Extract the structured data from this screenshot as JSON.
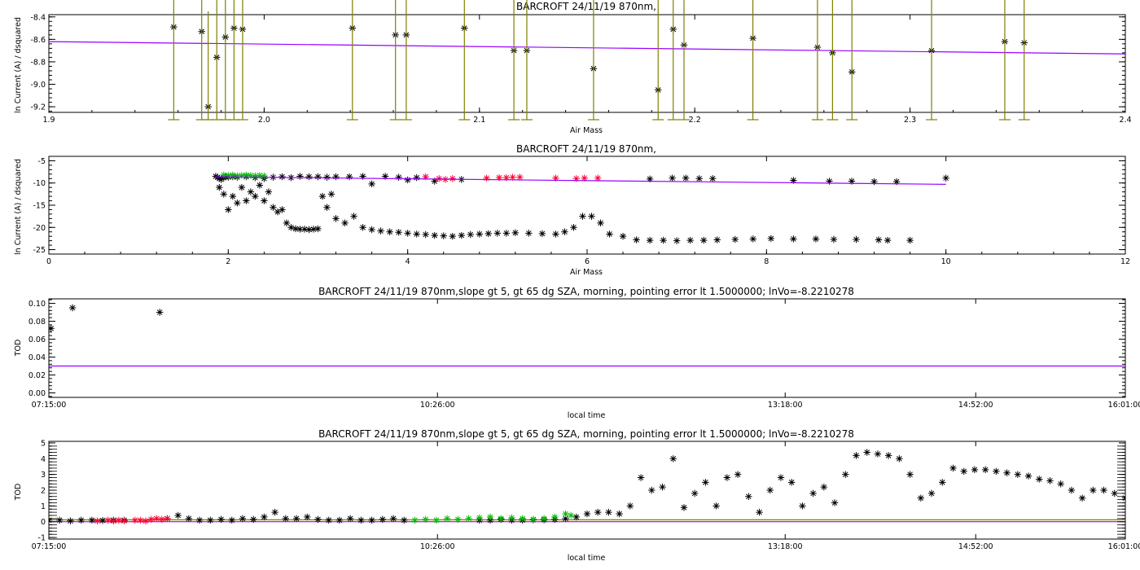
{
  "colors": {
    "fit": "#9900ff",
    "errorbar": "#7f7f00",
    "point": "#000000",
    "red": "#ff0033",
    "green": "#00bb00"
  },
  "chart_data": [
    {
      "type": "scatter",
      "title": "BARCROFT 24/11/19 870nm,",
      "xlabel": "Air Mass",
      "ylabel": "ln Current (A) / dsquared",
      "xlim": [
        1.9,
        2.4
      ],
      "ylim": [
        -9.25,
        -8.38
      ],
      "xticks": [
        1.9,
        2.0,
        2.1,
        2.2,
        2.3,
        2.4
      ],
      "xtick_labels": [
        "1.9",
        "2.0",
        "2.1",
        "2.2",
        "2.3",
        "2.4"
      ],
      "yticks": [
        -8.4,
        -8.6,
        -8.8,
        -9.0,
        -9.2
      ],
      "ytick_labels": [
        "-8.4",
        "-8.6",
        "-8.8",
        "-9.0",
        "-9.2"
      ],
      "fit_line": {
        "x": [
          1.9,
          2.4
        ],
        "y": [
          -8.62,
          -8.73
        ]
      },
      "errorbar_halfwidth": 0.85,
      "points": {
        "x": [
          1.958,
          1.971,
          1.974,
          1.978,
          1.982,
          1.986,
          1.99,
          2.041,
          2.061,
          2.066,
          2.093,
          2.116,
          2.122,
          2.153,
          2.183,
          2.19,
          2.195,
          2.227,
          2.257,
          2.264,
          2.273,
          2.31,
          2.344,
          2.353
        ],
        "y": [
          -8.49,
          -8.53,
          -9.2,
          -8.76,
          -8.58,
          -8.5,
          -8.51,
          -8.5,
          -8.56,
          -8.56,
          -8.5,
          -8.7,
          -8.7,
          -8.86,
          -9.05,
          -8.51,
          -8.65,
          -8.59,
          -8.67,
          -8.72,
          -8.89,
          -8.7,
          -8.62,
          -8.63
        ]
      }
    },
    {
      "type": "scatter",
      "title": "BARCROFT 24/11/19 870nm,",
      "xlabel": "Air Mass",
      "ylabel": "ln Current (A) / dsquared",
      "xlim": [
        0,
        12
      ],
      "ylim": [
        -26,
        -4
      ],
      "xticks": [
        0,
        2,
        4,
        6,
        8,
        10,
        12
      ],
      "xtick_labels": [
        "0",
        "2",
        "4",
        "6",
        "8",
        "10",
        "12"
      ],
      "yticks": [
        -5,
        -10,
        -15,
        -20,
        -25
      ],
      "ytick_labels": [
        "-5",
        "-10",
        "-15",
        "-20",
        "-25"
      ],
      "fit_line": {
        "x": [
          1.85,
          10
        ],
        "y": [
          -8.6,
          -10.3
        ]
      },
      "upper_points": {
        "x": [
          1.86,
          1.88,
          1.9,
          1.92,
          1.95,
          1.97,
          2.0,
          2.05,
          2.1,
          2.2,
          2.3,
          2.4,
          2.5,
          2.6,
          2.7,
          2.8,
          2.9,
          3.0,
          3.1,
          3.2,
          3.35,
          3.5,
          3.6,
          3.75,
          3.9,
          4.0,
          4.1,
          4.3,
          4.6,
          6.7,
          6.95,
          7.1,
          7.25,
          7.4,
          8.3,
          8.7,
          8.95,
          9.2,
          9.45,
          10.0
        ],
        "y": [
          -8.5,
          -8.7,
          -9.0,
          -9.2,
          -8.8,
          -8.6,
          -8.7,
          -8.6,
          -8.7,
          -8.6,
          -8.8,
          -9.0,
          -8.7,
          -8.6,
          -8.8,
          -8.5,
          -8.6,
          -8.6,
          -8.7,
          -8.6,
          -8.6,
          -8.5,
          -10.2,
          -8.5,
          -8.7,
          -9.3,
          -8.8,
          -9.6,
          -9.2,
          -9.1,
          -8.9,
          -8.9,
          -9.0,
          -9.0,
          -9.4,
          -9.6,
          -9.6,
          -9.7,
          -9.7,
          -8.9
        ]
      },
      "red_points": {
        "x": [
          4.2,
          4.35,
          4.42,
          4.5,
          4.88,
          5.02,
          5.1,
          5.17,
          5.25,
          5.65,
          5.88,
          5.97,
          6.12
        ],
        "y": [
          -8.6,
          -9.0,
          -9.2,
          -9.0,
          -8.9,
          -8.8,
          -8.8,
          -8.7,
          -8.7,
          -8.9,
          -9.0,
          -8.9,
          -8.9
        ]
      },
      "green_points": {
        "x": [
          1.95,
          2.0,
          2.05,
          2.1,
          2.15,
          2.2,
          2.25,
          2.3,
          2.35,
          2.4
        ],
        "y": [
          -8.2,
          -8.3,
          -8.2,
          -8.4,
          -8.3,
          -8.2,
          -8.3,
          -8.4,
          -8.3,
          -8.4
        ]
      },
      "lower_points": {
        "x": [
          1.9,
          1.95,
          2.0,
          2.05,
          2.1,
          2.15,
          2.2,
          2.25,
          2.3,
          2.35,
          2.4,
          2.45,
          2.5,
          2.55,
          2.6,
          2.65,
          2.7,
          2.75,
          2.8,
          2.85,
          2.9,
          2.95,
          3.0,
          3.05,
          3.1,
          3.15,
          3.2,
          3.3,
          3.4,
          3.5,
          3.6,
          3.7,
          3.8,
          3.9,
          4.0,
          4.1,
          4.2,
          4.3,
          4.4,
          4.5,
          4.6,
          4.7,
          4.8,
          4.9,
          5.0,
          5.1,
          5.2,
          5.35,
          5.5,
          5.65,
          5.75,
          5.85,
          5.95,
          6.05,
          6.15,
          6.25,
          6.4,
          6.55,
          6.7,
          6.85,
          7.0,
          7.15,
          7.3,
          7.45,
          7.65,
          7.85,
          8.05,
          8.3,
          8.55,
          8.75,
          9.0,
          9.25,
          9.35,
          9.6
        ],
        "y": [
          -11.0,
          -12.5,
          -16.0,
          -13.0,
          -14.5,
          -11.0,
          -14.0,
          -12.0,
          -13.0,
          -10.5,
          -14.0,
          -12.0,
          -15.5,
          -16.5,
          -16.0,
          -19.0,
          -20.0,
          -20.3,
          -20.4,
          -20.4,
          -20.5,
          -20.4,
          -20.3,
          -13.0,
          -15.5,
          -12.5,
          -18.0,
          -19.0,
          -17.5,
          -20.0,
          -20.5,
          -20.8,
          -21.0,
          -21.1,
          -21.3,
          -21.5,
          -21.6,
          -21.8,
          -21.9,
          -22.0,
          -21.8,
          -21.6,
          -21.5,
          -21.4,
          -21.3,
          -21.3,
          -21.2,
          -21.3,
          -21.4,
          -21.5,
          -21.0,
          -20.0,
          -17.5,
          -17.5,
          -19.0,
          -21.5,
          -22.0,
          -22.8,
          -22.9,
          -22.9,
          -23.0,
          -22.9,
          -22.9,
          -22.8,
          -22.7,
          -22.6,
          -22.5,
          -22.6,
          -22.6,
          -22.7,
          -22.7,
          -22.8,
          -22.9,
          -22.9
        ]
      }
    },
    {
      "type": "scatter",
      "title": "BARCROFT 24/11/19 870nm,slope gt 5, gt 65 dg SZA, morning, pointing error lt 1.5000000; lnVo=-8.2210278",
      "xlabel": "local time",
      "ylabel": "TOD",
      "xlim": [
        0,
        1
      ],
      "ylim": [
        -0.005,
        0.105
      ],
      "xtick_labels": [
        "07:15:00",
        "10:26:00",
        "13:18:00",
        "14:52:00",
        "16:01:00"
      ],
      "yticks": [
        0.0,
        0.02,
        0.04,
        0.06,
        0.08,
        0.1
      ],
      "ytick_labels": [
        "0.00",
        "0.02",
        "0.04",
        "0.06",
        "0.08",
        "0.10"
      ],
      "fit_line": {
        "x": [
          0,
          1
        ],
        "y": [
          0.03,
          0.03
        ]
      },
      "points": {
        "x": [
          0.002,
          0.022,
          0.103
        ],
        "y": [
          0.072,
          0.095,
          0.09
        ]
      }
    },
    {
      "type": "scatter",
      "title": "BARCROFT 24/11/19 870nm,slope gt 5, gt 65 dg SZA, morning, pointing error lt 1.5000000; lnVo=-8.2210278",
      "xlabel": "local time",
      "ylabel": "TOD",
      "xlim": [
        0,
        1
      ],
      "ylim": [
        -1.1,
        5.1
      ],
      "xtick_labels": [
        "07:15:00",
        "10:26:00",
        "13:18:00",
        "14:52:00",
        "16:01:00"
      ],
      "yticks": [
        -1,
        0,
        1,
        2,
        3,
        4,
        5
      ],
      "ytick_labels": [
        "-1",
        "0",
        "1",
        "2",
        "3",
        "4",
        "5"
      ],
      "fit_lines": [
        {
          "x": [
            0,
            1
          ],
          "y": [
            0.0,
            0.0
          ]
        },
        {
          "x": [
            0,
            1
          ],
          "y": [
            0.12,
            0.12
          ]
        }
      ],
      "points": {
        "x": [
          0.0,
          0.01,
          0.02,
          0.03,
          0.04,
          0.05,
          0.06,
          0.07,
          0.11,
          0.12,
          0.13,
          0.14,
          0.15,
          0.16,
          0.17,
          0.18,
          0.19,
          0.2,
          0.21,
          0.22,
          0.23,
          0.24,
          0.25,
          0.26,
          0.27,
          0.28,
          0.29,
          0.3,
          0.31,
          0.32,
          0.33,
          0.4,
          0.41,
          0.42,
          0.43,
          0.44,
          0.45,
          0.46,
          0.47,
          0.48,
          0.49,
          0.5,
          0.51,
          0.52,
          0.53,
          0.54,
          0.55,
          0.56,
          0.57,
          0.58,
          0.59,
          0.6,
          0.61,
          0.62,
          0.63,
          0.64,
          0.65,
          0.66,
          0.67,
          0.68,
          0.69,
          0.7,
          0.71,
          0.72,
          0.73,
          0.74,
          0.75,
          0.76,
          0.77,
          0.78,
          0.79,
          0.8,
          0.81,
          0.82,
          0.83,
          0.84,
          0.85,
          0.86,
          0.87,
          0.88,
          0.89,
          0.9,
          0.91,
          0.92,
          0.93,
          0.94,
          0.95,
          0.96,
          0.97,
          0.98,
          0.99,
          1.0
        ],
        "y": [
          0.1,
          0.1,
          0.05,
          0.1,
          0.1,
          0.08,
          0.1,
          0.1,
          0.2,
          0.4,
          0.2,
          0.1,
          0.1,
          0.15,
          0.1,
          0.2,
          0.15,
          0.3,
          0.6,
          0.2,
          0.2,
          0.3,
          0.15,
          0.1,
          0.1,
          0.2,
          0.1,
          0.1,
          0.15,
          0.2,
          0.1,
          0.1,
          0.1,
          0.15,
          0.1,
          0.1,
          0.12,
          0.12,
          0.15,
          0.2,
          0.3,
          0.5,
          0.6,
          0.6,
          0.5,
          1.0,
          2.8,
          2.0,
          2.2,
          4.0,
          0.9,
          1.8,
          2.5,
          1.0,
          2.8,
          3.0,
          1.6,
          0.6,
          2.0,
          2.8,
          2.5,
          1.0,
          1.8,
          2.2,
          1.2,
          3.0,
          4.2,
          4.4,
          4.3,
          4.2,
          4.0,
          3.0,
          1.5,
          1.8,
          2.5,
          3.4,
          3.2,
          3.3,
          3.3,
          3.2,
          3.1,
          3.0,
          2.9,
          2.7,
          2.6,
          2.4,
          2.0,
          1.5,
          2.0,
          2.0,
          1.8,
          1.5
        ]
      },
      "red_points": {
        "x": [
          0.045,
          0.055,
          0.06,
          0.065,
          0.07,
          0.08,
          0.085,
          0.09,
          0.095,
          0.1,
          0.105,
          0.11
        ],
        "y": [
          0.05,
          0.1,
          0.05,
          0.1,
          0.05,
          0.1,
          0.1,
          0.05,
          0.15,
          0.2,
          0.15,
          0.2
        ]
      },
      "green_points": {
        "x": [
          0.34,
          0.35,
          0.36,
          0.37,
          0.38,
          0.39,
          0.4,
          0.41,
          0.42,
          0.43,
          0.44,
          0.45,
          0.46,
          0.47,
          0.48,
          0.485
        ],
        "y": [
          0.1,
          0.15,
          0.1,
          0.2,
          0.15,
          0.2,
          0.25,
          0.3,
          0.2,
          0.25,
          0.2,
          0.15,
          0.2,
          0.3,
          0.5,
          0.4
        ]
      }
    }
  ]
}
